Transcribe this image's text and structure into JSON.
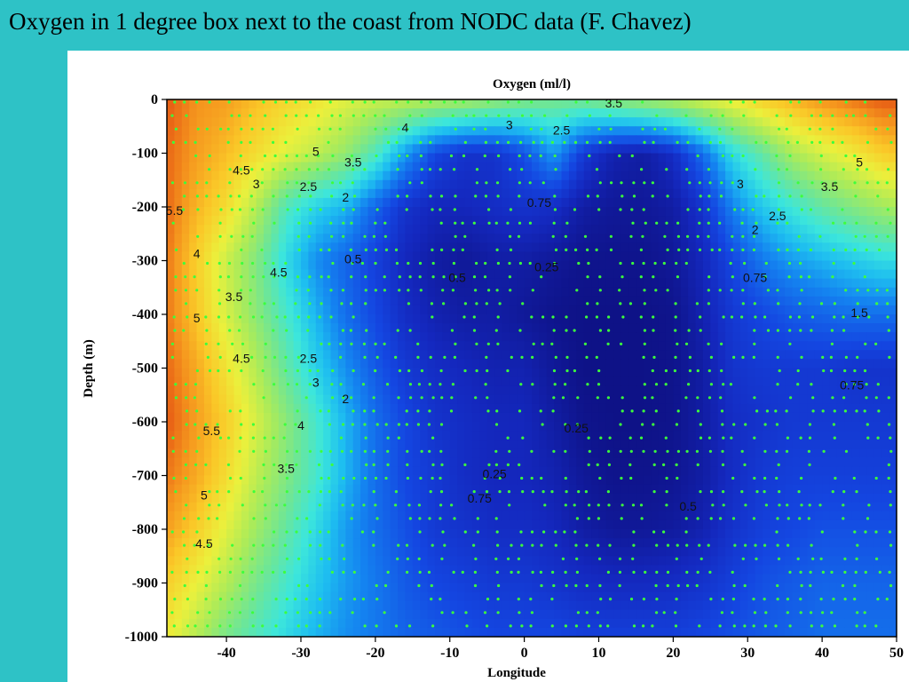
{
  "slide": {
    "title": "Oxygen in 1 degree box next to the coast from NODC data (F. Chavez)"
  },
  "chart_data": {
    "type": "heatmap",
    "title": "Oxygen (ml/l)",
    "xlabel": "Longitude",
    "ylabel": "Depth (m)",
    "xlim": [
      -48,
      50
    ],
    "ylim": [
      -1000,
      0
    ],
    "x_ticks": [
      -40,
      -30,
      -20,
      -10,
      0,
      10,
      20,
      30,
      40,
      50
    ],
    "y_ticks": [
      0,
      -100,
      -200,
      -300,
      -400,
      -500,
      -600,
      -700,
      -800,
      -900,
      -1000
    ],
    "x_tick_labels": [
      "-40",
      "-30",
      "-20",
      "-10",
      "0",
      "10",
      "20",
      "30",
      "40",
      "50"
    ],
    "y_tick_labels": [
      "0",
      "-100",
      "-200",
      "-300",
      "-400",
      "-500",
      "-600",
      "-700",
      "-800",
      "-900",
      "-1000"
    ],
    "depths": [
      0,
      -100,
      -200,
      -300,
      -400,
      -500,
      -600,
      -700,
      -800,
      -900,
      -1000
    ],
    "longitudes": [
      -48,
      -44,
      -40,
      -36,
      -32,
      -28,
      -24,
      -20,
      -16,
      -12,
      -8,
      -4,
      0,
      4,
      8,
      12,
      16,
      20,
      24,
      28,
      32,
      36,
      40,
      44,
      48,
      50
    ],
    "oxygen": [
      [
        6.0,
        5.6,
        5.5,
        5.2,
        4.9,
        4.7,
        4.4,
        4.2,
        4.1,
        4.0,
        3.9,
        3.7,
        3.5,
        3.4,
        3.4,
        3.6,
        3.8,
        4.0,
        4.3,
        4.6,
        5.0,
        5.3,
        5.6,
        5.8,
        6.0,
        6.0
      ],
      [
        5.9,
        5.5,
        5.2,
        4.8,
        4.4,
        4.1,
        3.7,
        3.0,
        2.0,
        1.2,
        0.9,
        0.9,
        1.3,
        2.0,
        1.0,
        0.6,
        0.5,
        0.8,
        1.6,
        2.6,
        3.2,
        3.9,
        4.3,
        4.6,
        5.0,
        5.1
      ],
      [
        5.9,
        5.3,
        4.8,
        4.0,
        3.0,
        2.5,
        2.2,
        1.5,
        0.9,
        0.7,
        0.7,
        0.8,
        0.9,
        0.8,
        0.5,
        0.4,
        0.4,
        0.5,
        0.9,
        1.8,
        2.4,
        2.8,
        3.2,
        3.5,
        3.8,
        3.9
      ],
      [
        5.8,
        5.0,
        4.2,
        3.5,
        2.6,
        1.9,
        1.5,
        1.1,
        0.7,
        0.5,
        0.4,
        0.5,
        0.5,
        0.4,
        0.3,
        0.3,
        0.3,
        0.4,
        0.7,
        1.2,
        1.7,
        2.0,
        2.2,
        2.4,
        2.6,
        2.6
      ],
      [
        5.8,
        5.1,
        4.3,
        3.6,
        2.9,
        2.2,
        1.6,
        1.2,
        0.8,
        0.6,
        0.5,
        0.5,
        0.4,
        0.3,
        0.25,
        0.25,
        0.25,
        0.3,
        0.6,
        1.0,
        1.2,
        1.4,
        1.5,
        1.6,
        1.6,
        1.6
      ],
      [
        5.9,
        5.4,
        4.7,
        4.0,
        3.2,
        2.5,
        1.9,
        1.4,
        1.0,
        0.8,
        0.7,
        0.6,
        0.6,
        0.4,
        0.25,
        0.25,
        0.25,
        0.3,
        0.5,
        0.9,
        1.0,
        1.0,
        1.0,
        0.9,
        0.9,
        0.9
      ],
      [
        6.0,
        5.5,
        5.0,
        4.3,
        3.6,
        2.9,
        2.2,
        1.6,
        1.2,
        0.9,
        0.8,
        0.7,
        0.7,
        0.5,
        0.3,
        0.25,
        0.25,
        0.3,
        0.5,
        0.8,
        0.9,
        1.0,
        1.0,
        1.0,
        1.0,
        1.0
      ],
      [
        5.8,
        5.4,
        4.8,
        4.1,
        3.5,
        2.9,
        2.2,
        1.6,
        1.2,
        1.0,
        0.8,
        0.7,
        0.7,
        0.6,
        0.4,
        0.3,
        0.3,
        0.35,
        0.5,
        0.8,
        1.0,
        1.1,
        1.1,
        1.1,
        1.1,
        1.1
      ],
      [
        5.5,
        5.0,
        4.4,
        3.8,
        3.2,
        2.6,
        2.0,
        1.6,
        1.3,
        1.0,
        0.9,
        0.8,
        0.8,
        0.7,
        0.5,
        0.4,
        0.4,
        0.45,
        0.6,
        0.9,
        1.1,
        1.2,
        1.3,
        1.3,
        1.3,
        1.3
      ],
      [
        5.0,
        4.5,
        4.0,
        3.4,
        2.9,
        2.4,
        2.0,
        1.7,
        1.4,
        1.2,
        1.1,
        1.0,
        1.0,
        0.9,
        0.8,
        0.75,
        0.75,
        0.8,
        0.9,
        1.1,
        1.3,
        1.4,
        1.5,
        1.5,
        1.5,
        1.5
      ],
      [
        4.6,
        4.0,
        3.4,
        3.0,
        2.6,
        2.2,
        1.9,
        1.7,
        1.5,
        1.4,
        1.3,
        1.2,
        1.2,
        1.2,
        1.1,
        1.1,
        1.1,
        1.1,
        1.2,
        1.3,
        1.4,
        1.5,
        1.6,
        1.6,
        1.6,
        1.6
      ]
    ],
    "contour_labels": [
      {
        "text": "3.5",
        "lon": 12,
        "depth": -15
      },
      {
        "text": "3",
        "lon": -2,
        "depth": -55
      },
      {
        "text": "2.5",
        "lon": 5,
        "depth": -65
      },
      {
        "text": "4",
        "lon": -16,
        "depth": -60
      },
      {
        "text": "5",
        "lon": -28,
        "depth": -105
      },
      {
        "text": "4.5",
        "lon": -38,
        "depth": -140
      },
      {
        "text": "3.5",
        "lon": -23,
        "depth": -125
      },
      {
        "text": "3",
        "lon": -36,
        "depth": -165
      },
      {
        "text": "2.5",
        "lon": -29,
        "depth": -170
      },
      {
        "text": "2",
        "lon": -24,
        "depth": -190
      },
      {
        "text": "5",
        "lon": 45,
        "depth": -125
      },
      {
        "text": "3",
        "lon": 29,
        "depth": -165
      },
      {
        "text": "3.5",
        "lon": 41,
        "depth": -170
      },
      {
        "text": "2.5",
        "lon": 34,
        "depth": -225
      },
      {
        "text": "2",
        "lon": 31,
        "depth": -250
      },
      {
        "text": "5.5",
        "lon": -47,
        "depth": -215
      },
      {
        "text": "4",
        "lon": -44,
        "depth": -295
      },
      {
        "text": "4.5",
        "lon": -33,
        "depth": -330
      },
      {
        "text": "3.5",
        "lon": -39,
        "depth": -375
      },
      {
        "text": "5",
        "lon": -44,
        "depth": -415
      },
      {
        "text": "4.5",
        "lon": -38,
        "depth": -490
      },
      {
        "text": "2.5",
        "lon": -29,
        "depth": -490
      },
      {
        "text": "3",
        "lon": -28,
        "depth": -535
      },
      {
        "text": "2",
        "lon": -24,
        "depth": -565
      },
      {
        "text": "4",
        "lon": -30,
        "depth": -615
      },
      {
        "text": "5.5",
        "lon": -42,
        "depth": -625
      },
      {
        "text": "3.5",
        "lon": -32,
        "depth": -695
      },
      {
        "text": "5",
        "lon": -43,
        "depth": -745
      },
      {
        "text": "4.5",
        "lon": -43,
        "depth": -835
      },
      {
        "text": "0.5",
        "lon": -23,
        "depth": -305
      },
      {
        "text": "0.75",
        "lon": 2,
        "depth": -200
      },
      {
        "text": "0.25",
        "lon": 3,
        "depth": -320
      },
      {
        "text": "0.5",
        "lon": -9,
        "depth": -340
      },
      {
        "text": "0.75",
        "lon": 31,
        "depth": -340
      },
      {
        "text": "0.75",
        "lon": 44,
        "depth": -540
      },
      {
        "text": "0.25",
        "lon": 7,
        "depth": -620
      },
      {
        "text": "0.25",
        "lon": -4,
        "depth": -705
      },
      {
        "text": "0.75",
        "lon": -6,
        "depth": -750
      },
      {
        "text": "0.5",
        "lon": 22,
        "depth": -765
      },
      {
        "text": "1.5",
        "lon": 45,
        "depth": -405
      }
    ]
  }
}
